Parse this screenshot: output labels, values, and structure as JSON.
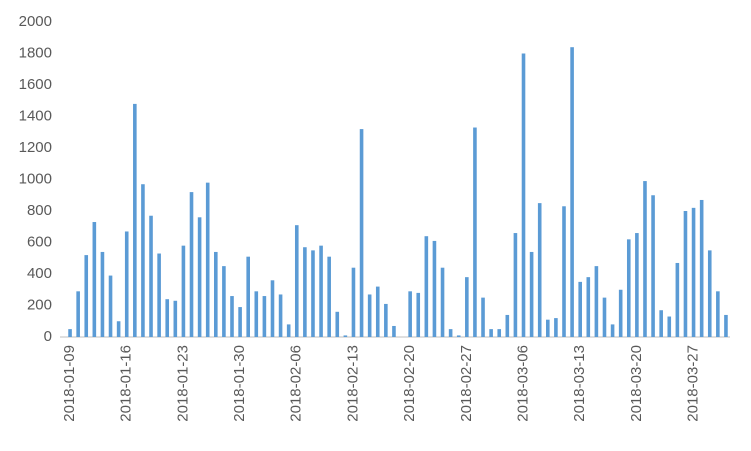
{
  "chart_data": {
    "type": "bar",
    "categories": [
      "2018-01-09",
      null,
      null,
      null,
      null,
      null,
      null,
      "2018-01-16",
      null,
      null,
      null,
      null,
      null,
      null,
      "2018-01-23",
      null,
      null,
      null,
      null,
      null,
      null,
      "2018-01-30",
      null,
      null,
      null,
      null,
      null,
      null,
      "2018-02-06",
      null,
      null,
      null,
      null,
      null,
      null,
      "2018-02-13",
      null,
      null,
      null,
      null,
      null,
      null,
      "2018-02-20",
      null,
      null,
      null,
      null,
      null,
      null,
      "2018-02-27",
      null,
      null,
      null,
      null,
      null,
      null,
      "2018-03-06",
      null,
      null,
      null,
      null,
      null,
      null,
      "2018-03-13",
      null,
      null,
      null,
      null,
      null,
      null,
      "2018-03-20",
      null,
      null,
      null,
      null,
      null,
      null,
      "2018-03-27",
      null,
      null,
      null,
      null
    ],
    "values": [
      50,
      290,
      520,
      730,
      540,
      390,
      100,
      670,
      1480,
      970,
      770,
      530,
      240,
      230,
      580,
      920,
      760,
      980,
      540,
      450,
      260,
      190,
      510,
      290,
      260,
      360,
      270,
      80,
      710,
      570,
      550,
      580,
      510,
      160,
      10,
      440,
      1320,
      270,
      320,
      210,
      70,
      0,
      290,
      280,
      640,
      610,
      440,
      50,
      10,
      380,
      1330,
      250,
      50,
      50,
      140,
      660,
      1800,
      540,
      850,
      110,
      120,
      830,
      1840,
      350,
      380,
      450,
      250,
      80,
      300,
      620,
      660,
      990,
      900,
      170,
      130,
      470,
      800,
      820,
      870,
      550,
      290,
      140
    ],
    "color": "#5b9bd5",
    "ylim": [
      0,
      2000
    ],
    "yticks": [
      0,
      200,
      400,
      600,
      800,
      1000,
      1200,
      1400,
      1600,
      1800,
      2000
    ],
    "grid": false
  }
}
